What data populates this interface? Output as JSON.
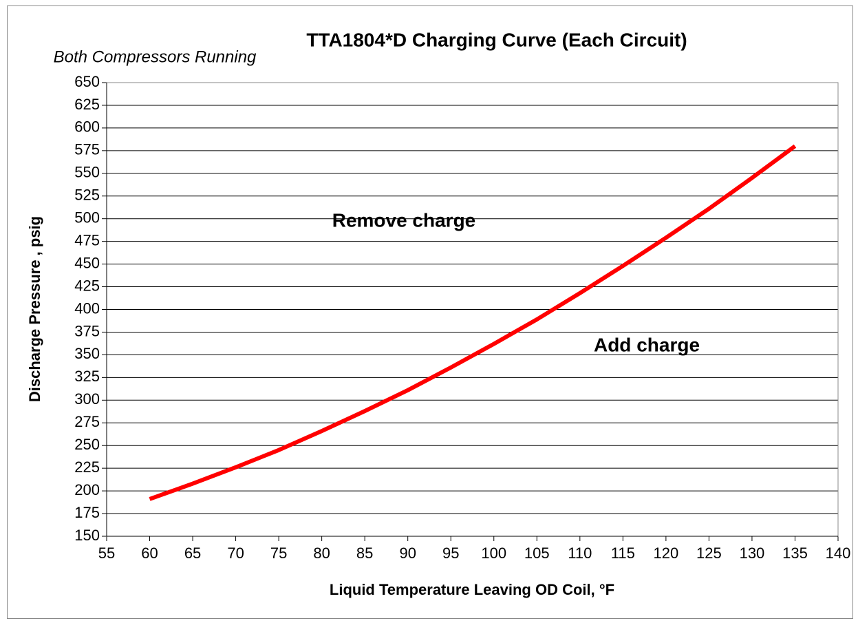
{
  "chart_data": {
    "type": "line",
    "title": "TTA1804*D Charging Curve (Each Circuit)",
    "subtitle": "Both Compressors Running",
    "x_label": "Liquid Temperature Leaving OD Coil, °F",
    "y_label": "Discharge Pressure ,  psig",
    "annotations": [
      "Remove charge",
      "Add charge"
    ],
    "x": [
      60,
      65,
      70,
      75,
      80,
      85,
      90,
      95,
      100,
      105,
      110,
      115,
      120,
      125,
      130,
      135
    ],
    "series": [
      {
        "color": "#ff0000",
        "values": [
          191,
          208,
          226,
          245,
          266,
          288,
          311,
          336,
          362,
          389,
          418,
          448,
          479,
          511,
          545,
          580
        ]
      }
    ],
    "xlim": [
      55,
      140
    ],
    "xticks": [
      55,
      60,
      65,
      70,
      75,
      80,
      85,
      90,
      95,
      100,
      105,
      110,
      115,
      120,
      125,
      130,
      135,
      140
    ],
    "ylim": [
      150,
      650
    ],
    "yticks": [
      150,
      175,
      200,
      225,
      250,
      275,
      300,
      325,
      350,
      375,
      400,
      425,
      450,
      475,
      500,
      525,
      550,
      575,
      600,
      625,
      650
    ],
    "grid": true
  }
}
